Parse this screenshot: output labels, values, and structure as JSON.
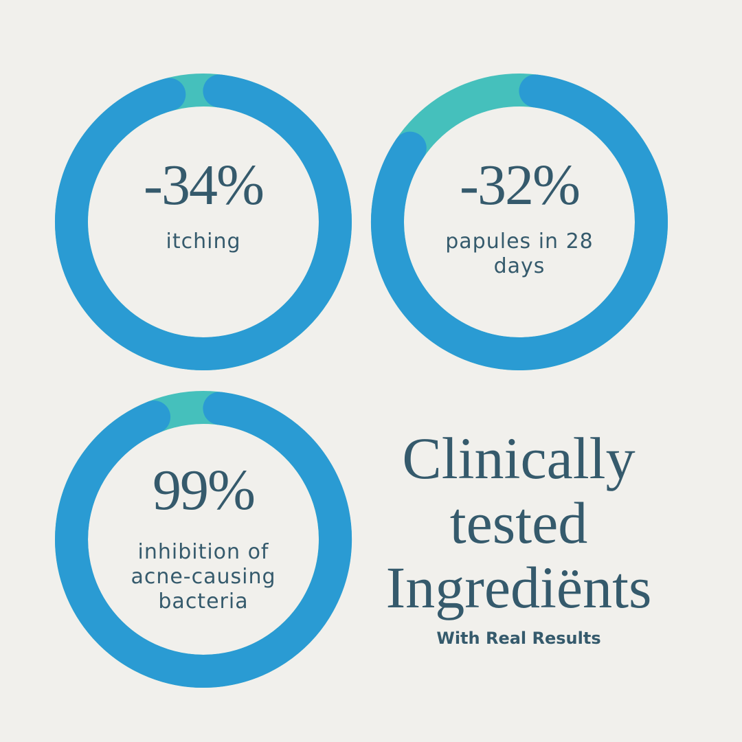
{
  "stats": [
    {
      "value": "-34%",
      "label": "itching"
    },
    {
      "value": "-32%",
      "label": "papules in 28 days"
    },
    {
      "value": "99%",
      "label": "inhibition of acne-causing bacteria"
    }
  ],
  "heading": {
    "lines": [
      "Clinically",
      "tested",
      "Ingrediënts"
    ],
    "subtitle": "With Real Results"
  }
}
